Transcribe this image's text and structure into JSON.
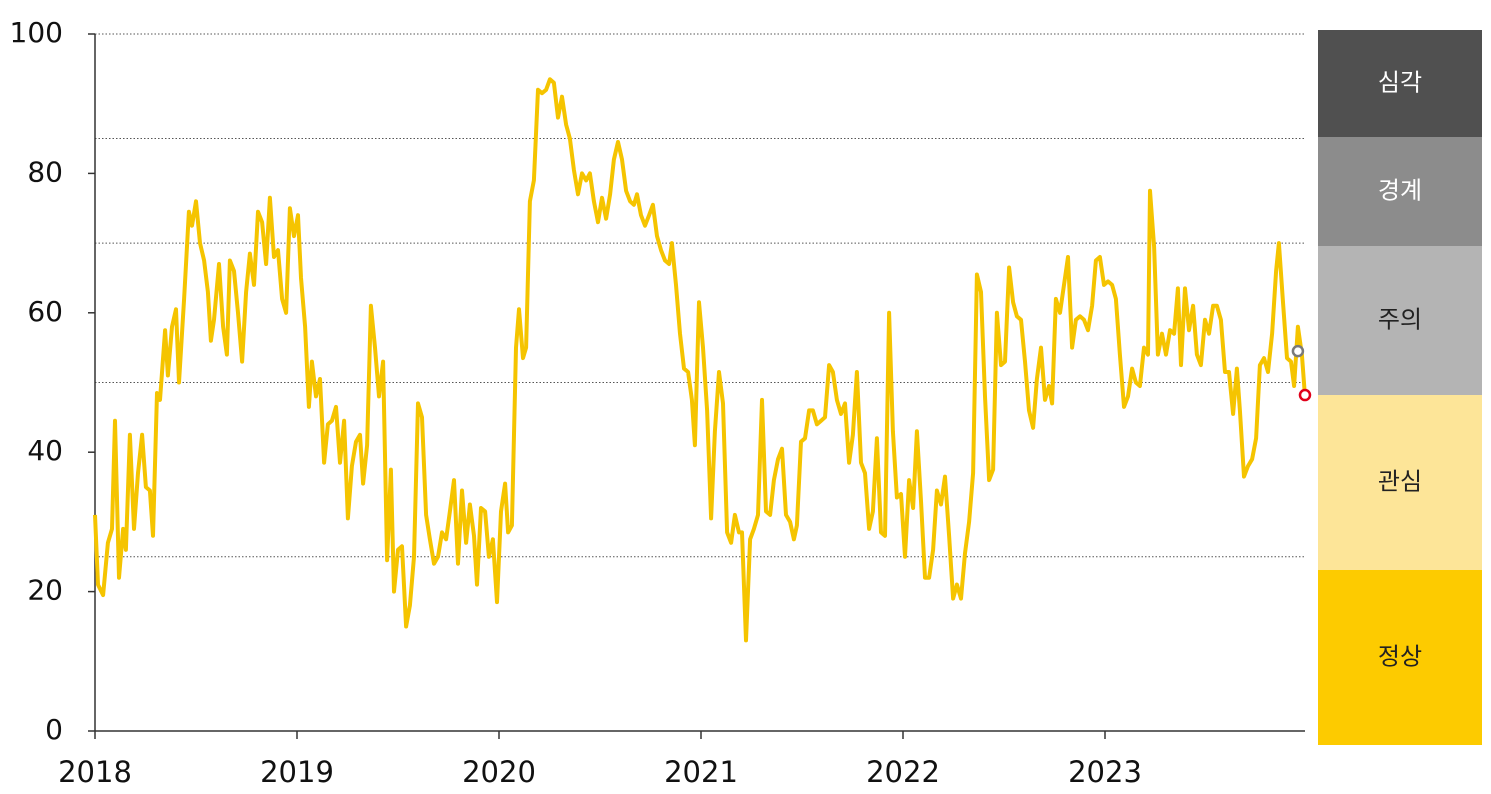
{
  "chart_data": {
    "type": "line",
    "color": "#f5c400",
    "x": [
      2018.0,
      2018.015,
      2018.04,
      2018.064,
      2018.084,
      2018.099,
      2018.119,
      2018.139,
      2018.153,
      2018.173,
      2018.193,
      2018.213,
      2018.233,
      2018.252,
      2018.272,
      2018.287,
      2018.307,
      2018.322,
      2018.347,
      2018.361,
      2018.381,
      2018.401,
      2018.416,
      2018.441,
      2018.465,
      2018.48,
      2018.5,
      2018.52,
      2018.54,
      2018.559,
      2018.574,
      2018.589,
      2018.614,
      2018.634,
      2018.653,
      2018.668,
      2018.688,
      2018.708,
      2018.728,
      2018.748,
      2018.767,
      2018.787,
      2018.807,
      2018.827,
      2018.847,
      2018.866,
      2018.886,
      2018.906,
      2018.926,
      2018.946,
      2018.965,
      2018.985,
      2019.005,
      2019.02,
      2019.04,
      2019.059,
      2019.074,
      2019.094,
      2019.114,
      2019.134,
      2019.153,
      2019.173,
      2019.193,
      2019.213,
      2019.233,
      2019.252,
      2019.272,
      2019.292,
      2019.312,
      2019.327,
      2019.347,
      2019.366,
      2019.386,
      2019.406,
      2019.426,
      2019.446,
      2019.465,
      2019.48,
      2019.5,
      2019.52,
      2019.54,
      2019.559,
      2019.579,
      2019.599,
      2019.619,
      2019.639,
      2019.658,
      2019.678,
      2019.698,
      2019.718,
      2019.738,
      2019.757,
      2019.777,
      2019.797,
      2019.817,
      2019.837,
      2019.856,
      2019.876,
      2019.891,
      2019.911,
      2019.931,
      2019.95,
      2019.97,
      2019.99,
      2020.01,
      2020.03,
      2020.045,
      2020.064,
      2020.084,
      2020.099,
      2020.119,
      2020.134,
      2020.153,
      2020.173,
      2020.193,
      2020.213,
      2020.233,
      2020.252,
      2020.272,
      2020.292,
      2020.312,
      2020.332,
      2020.351,
      2020.371,
      2020.391,
      2020.411,
      2020.431,
      2020.45,
      2020.47,
      2020.49,
      2020.51,
      2020.53,
      2020.55,
      2020.569,
      2020.589,
      2020.609,
      2020.629,
      2020.649,
      2020.668,
      2020.683,
      2020.703,
      2020.723,
      2020.743,
      2020.762,
      2020.782,
      2020.802,
      2020.822,
      2020.842,
      2020.856,
      2020.876,
      2020.896,
      2020.916,
      2020.936,
      2020.955,
      2020.97,
      2020.99,
      2021.01,
      2021.03,
      2021.05,
      2021.069,
      2021.089,
      2021.109,
      2021.129,
      2021.149,
      2021.168,
      2021.188,
      2021.203,
      2021.223,
      2021.243,
      2021.262,
      2021.282,
      2021.302,
      2021.322,
      2021.342,
      2021.361,
      2021.381,
      2021.401,
      2021.421,
      2021.441,
      2021.46,
      2021.475,
      2021.495,
      2021.515,
      2021.535,
      2021.554,
      2021.574,
      2021.594,
      2021.614,
      2021.634,
      2021.653,
      2021.673,
      2021.693,
      2021.713,
      2021.733,
      2021.752,
      2021.772,
      2021.792,
      2021.812,
      2021.832,
      2021.851,
      2021.871,
      2021.891,
      2021.911,
      2021.931,
      2021.95,
      2021.97,
      2021.99,
      2022.01,
      2022.03,
      2022.05,
      2022.069,
      2022.089,
      2022.109,
      2022.129,
      2022.149,
      2022.168,
      2022.188,
      2022.208,
      2022.228,
      2022.248,
      2022.267,
      2022.287,
      2022.307,
      2022.327,
      2022.347,
      2022.366,
      2022.386,
      2022.406,
      2022.426,
      2022.446,
      2022.465,
      2022.485,
      2022.505,
      2022.525,
      2022.545,
      2022.564,
      2022.584,
      2022.604,
      2022.624,
      2022.644,
      2022.663,
      2022.683,
      2022.703,
      2022.723,
      2022.738,
      2022.757,
      2022.777,
      2022.797,
      2022.817,
      2022.837,
      2022.856,
      2022.876,
      2022.896,
      2022.916,
      2022.936,
      2022.955,
      2022.975,
      2022.995,
      2023.015,
      2023.035,
      2023.054,
      2023.074,
      2023.094,
      2023.114,
      2023.134,
      2023.153,
      2023.173,
      2023.193,
      2023.213,
      2023.223,
      2023.243,
      2023.262,
      2023.282,
      2023.302,
      2023.322,
      2023.342,
      2023.361,
      2023.376,
      2023.396,
      2023.416,
      2023.436,
      2023.455,
      2023.475,
      2023.495,
      2023.515,
      2023.535,
      2023.554,
      2023.574,
      2023.594,
      2023.614,
      2023.634,
      2023.653,
      2023.668,
      2023.688,
      2023.708,
      2023.728,
      2023.748,
      2023.767,
      2023.787,
      2023.807,
      2023.827,
      2023.847,
      2023.861,
      2023.881,
      2023.901,
      2023.921,
      2023.936,
      2023.955,
      2023.975,
      2023.99
    ],
    "values": [
      31,
      21,
      19.5,
      27,
      29,
      44.5,
      22,
      29,
      26,
      42.5,
      29,
      37,
      42.5,
      35,
      34.5,
      28,
      48.5,
      47.5,
      57.5,
      51,
      58,
      60.5,
      50,
      62,
      74.5,
      72.5,
      76,
      70,
      67.5,
      63,
      56,
      59,
      67,
      58,
      54,
      67.5,
      66,
      60,
      53,
      63,
      68.5,
      64,
      74.5,
      73,
      67,
      76.5,
      68,
      69,
      62,
      60,
      75,
      71,
      74,
      65,
      58,
      46.5,
      53,
      48,
      50.5,
      38.5,
      44,
      44.5,
      46.5,
      38.5,
      44.5,
      30.5,
      38,
      41.5,
      42.5,
      35.5,
      41,
      61,
      55,
      48,
      53,
      24.5,
      37.5,
      20,
      26,
      26.5,
      15,
      18,
      25,
      47,
      45,
      31,
      27.5,
      24,
      25,
      28.5,
      27.5,
      31.5,
      36,
      24,
      34.5,
      27,
      32.5,
      28,
      21,
      32,
      31.5,
      25,
      27.5,
      18.5,
      31.5,
      35.5,
      28.5,
      29.5,
      55,
      60.5,
      53.5,
      55,
      76,
      79,
      92,
      91.5,
      92,
      93.5,
      93,
      88,
      91,
      87,
      85,
      80.5,
      77,
      80,
      79,
      80,
      76,
      73,
      76.5,
      73.5,
      77,
      82,
      84.5,
      82,
      77.5,
      76,
      75.5,
      77,
      74,
      72.5,
      74,
      75.5,
      71,
      69,
      67.5,
      67,
      70,
      64,
      57,
      52,
      51.5,
      47.5,
      41,
      61.5,
      55,
      46,
      30.5,
      43,
      51.5,
      47,
      28.5,
      27,
      31,
      28.5,
      28.5,
      13,
      27.5,
      29,
      31,
      47.5,
      31.5,
      31,
      36,
      39,
      40.5,
      31,
      30,
      27.5,
      29.5,
      41.5,
      42,
      46,
      46,
      44,
      44.5,
      45,
      52.5,
      51.5,
      47.5,
      45.5,
      47,
      38.5,
      42.5,
      51.5,
      38.5,
      37,
      29,
      31.5,
      42,
      28.5,
      28,
      60,
      43,
      33.5,
      34,
      25,
      36,
      32,
      43,
      33,
      22,
      22,
      26,
      34.5,
      32.5,
      36.5,
      28,
      19,
      21,
      19,
      25.5,
      30,
      37,
      65.5,
      63,
      48,
      36,
      37.5,
      60,
      52.5,
      53,
      66.5,
      61.5,
      59.5,
      59,
      53,
      46,
      43.5,
      50.5,
      55,
      47.5,
      49.5,
      47,
      62,
      60,
      64,
      68,
      55,
      59,
      59.5,
      59,
      57.5,
      61,
      67.5,
      68,
      64,
      64.5,
      64,
      62,
      54,
      46.5,
      48,
      52,
      50,
      49.5,
      55,
      54,
      77.5,
      69.5,
      54,
      57,
      54,
      57.5,
      57,
      63.5,
      52.5,
      63.5,
      57.5,
      61,
      54,
      52.5,
      59,
      57,
      61,
      61,
      59,
      51.5,
      51.5,
      45.5,
      52,
      46,
      36.5,
      38,
      39,
      42,
      52.5,
      53.5,
      51.5,
      57,
      66,
      70,
      61.5,
      53.5,
      53,
      49.5,
      58,
      54,
      48
    ],
    "markers": [
      {
        "x": 2023.955,
        "value": 54.5,
        "color": "#7a7a7a"
      },
      {
        "x": 2023.99,
        "value": 48.2,
        "color": "#e0001a"
      }
    ],
    "reference_lines": [
      100,
      85,
      70,
      50,
      25
    ],
    "xlim": [
      2018,
      2024
    ],
    "xticks": [
      2018,
      2019,
      2020,
      2021,
      2022,
      2023
    ],
    "ylim": [
      0,
      100
    ],
    "yticks": [
      0,
      20,
      40,
      60,
      80,
      100
    ],
    "bands": [
      {
        "name": "심각",
        "color": "#505050"
      },
      {
        "name": "경계",
        "color": "#8c8c8c"
      },
      {
        "name": "주의",
        "color": "#b4b4b4"
      },
      {
        "name": "관심",
        "color": "#fde598"
      },
      {
        "name": "정상",
        "color": "#fdcb00"
      }
    ]
  }
}
